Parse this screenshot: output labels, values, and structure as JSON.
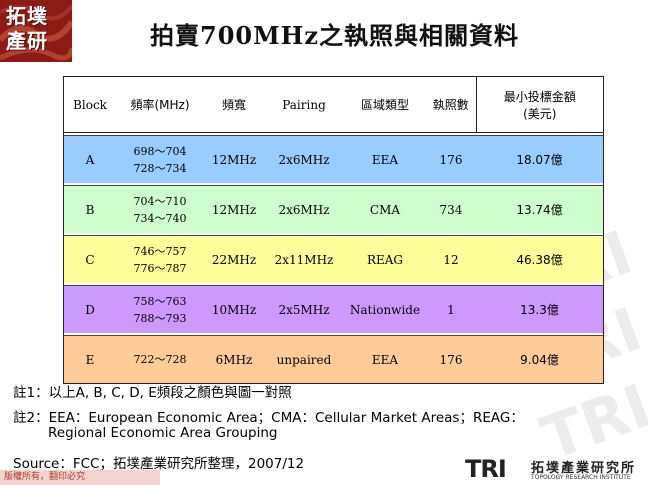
{
  "logo": {
    "line1": "拓墣",
    "line2": "產研"
  },
  "title": "拍賣700MHz之執照與相關資料",
  "table": {
    "headers": [
      "Block",
      "頻率(MHz)",
      "頻寬",
      "Pairing",
      "區域類型",
      "執照數",
      "最小投標金額",
      "(美元)"
    ],
    "rows": [
      {
        "block": "A",
        "freq1": "698～704",
        "freq2": "728～734",
        "bandwidth": "12MHz",
        "pairing": "2x6MHz",
        "area": "EEA",
        "licenses": "176",
        "min_bid": "18.07億",
        "color": "#99ccff"
      },
      {
        "block": "B",
        "freq1": "704～710",
        "freq2": "734～740",
        "bandwidth": "12MHz",
        "pairing": "2x6MHz",
        "area": "CMA",
        "licenses": "734",
        "min_bid": "13.74億",
        "color": "#ccffcc"
      },
      {
        "block": "C",
        "freq1": "746～757",
        "freq2": "776～787",
        "bandwidth": "22MHz",
        "pairing": "2x11MHz",
        "area": "REAG",
        "licenses": "12",
        "min_bid": "46.38億",
        "color": "#ffff99"
      },
      {
        "block": "D",
        "freq1": "758～763",
        "freq2": "788～793",
        "bandwidth": "10MHz",
        "pairing": "2x5MHz",
        "area": "Nationwide",
        "licenses": "1",
        "min_bid": "13.3億",
        "color": "#cc99ff"
      },
      {
        "block": "E",
        "freq1": "722～728",
        "freq2": "",
        "bandwidth": "6MHz",
        "pairing": "unpaired",
        "area": "EEA",
        "licenses": "176",
        "min_bid": "9.04億",
        "color": "#ffcc99"
      }
    ]
  },
  "notes": {
    "note1": "註1：以上A, B, C, D, E頻段之顏色與圖一對照",
    "note2": "註2：EEA：European Economic Area；CMA：Cellular Market Areas；REAG：",
    "note2_cont": "Regional Economic Area Grouping",
    "source": "Source：FCC；拓墣產業研究所整理，2007/12"
  },
  "footer": {
    "copyright": "版權所有，翻印必究",
    "brand_logo": "TRI",
    "brand_cn": "拓墣產業研究所",
    "brand_en": "TOPOLOGY RESEARCH INSTITUTE"
  }
}
